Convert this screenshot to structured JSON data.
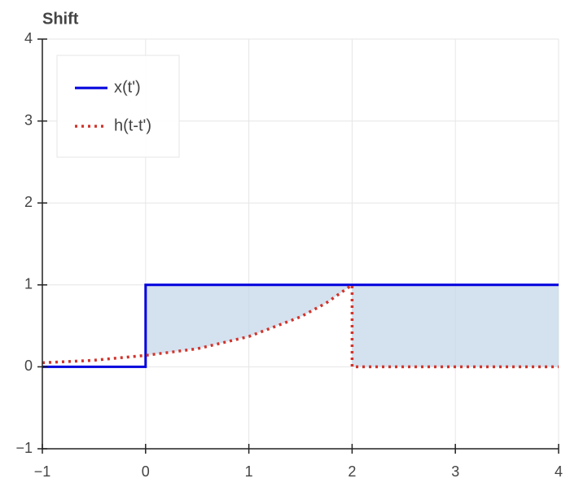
{
  "chart_data": {
    "type": "line",
    "title": "Shift",
    "series": [
      {
        "name": "x(t')",
        "color": "#0000dd",
        "dash": "solid",
        "x": [
          -1,
          0,
          0,
          4
        ],
        "values": [
          0,
          0,
          1,
          1
        ]
      },
      {
        "name": "h(t-t')",
        "color": "#d0342c",
        "dash": "dotted",
        "x": [
          -1,
          -0.5,
          0,
          0.5,
          1,
          1.5,
          1.75,
          2,
          2,
          4
        ],
        "values": [
          0.05,
          0.08,
          0.14,
          0.22,
          0.37,
          0.61,
          0.78,
          1,
          0,
          0
        ]
      }
    ],
    "fill_between": {
      "color": "#c6d7ea"
    },
    "xlim": [
      -1,
      4
    ],
    "xticks": [
      {
        "value": -1,
        "label": "−1"
      },
      0,
      1,
      2,
      3,
      4
    ],
    "ylim": [
      -1,
      4
    ],
    "yticks": [
      {
        "value": -1,
        "label": "−1"
      },
      0,
      1,
      2,
      3,
      4
    ],
    "grid": true,
    "legend": "top-left"
  }
}
